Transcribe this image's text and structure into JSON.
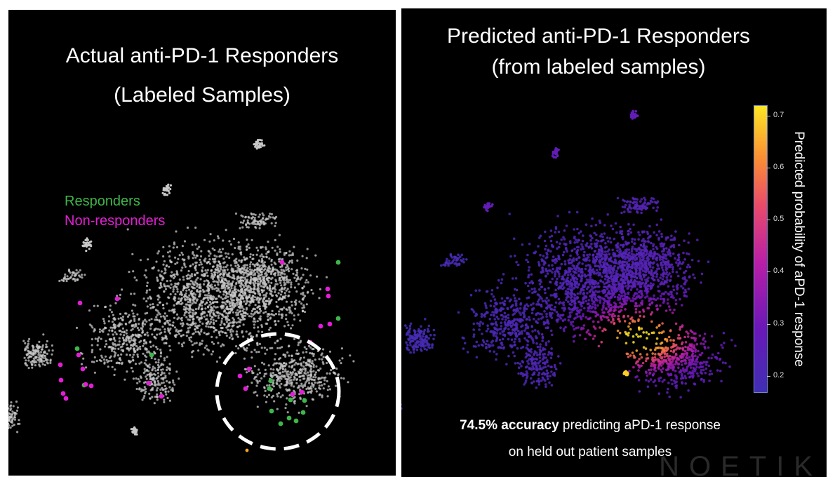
{
  "left_panel": {
    "title_line1": "Actual anti-PD-1 Responders",
    "title_line2": "(Labeled Samples)",
    "legend": [
      {
        "label": "Responders",
        "color": "#3fb64a"
      },
      {
        "label": "Non-responders",
        "color": "#e21fd4"
      }
    ]
  },
  "right_panel": {
    "title_line1": "Predicted anti-PD-1 Responders",
    "title_line2": "(from labeled samples)",
    "caption_bold": "74.5% accuracy",
    "caption_rest": " predicting aPD-1 response",
    "caption_line2": "on held out patient samples",
    "watermark": "NOETIK"
  },
  "chart_data": [
    {
      "type": "scatter",
      "title": "Actual anti-PD-1 Responders (Labeled Samples)",
      "xlabel": "",
      "ylabel": "",
      "series": [
        {
          "name": "Unlabeled",
          "color": "#c8c8c8"
        },
        {
          "name": "Responders",
          "color": "#3fb64a"
        },
        {
          "name": "Non-responders",
          "color": "#e21fd4"
        }
      ],
      "annotations": [
        "dashed circle highlighting responder-enriched region (lower right)"
      ]
    },
    {
      "type": "scatter",
      "title": "Predicted anti-PD-1 Responders (from labeled samples)",
      "colorbar": {
        "label": "Predicted probability of aPD-1 response",
        "range": [
          0.17,
          0.72
        ],
        "ticks": [
          "0.2",
          "0.3",
          "0.4",
          "0.5",
          "0.6",
          "0.7"
        ],
        "colormap": "plasma"
      }
    }
  ]
}
